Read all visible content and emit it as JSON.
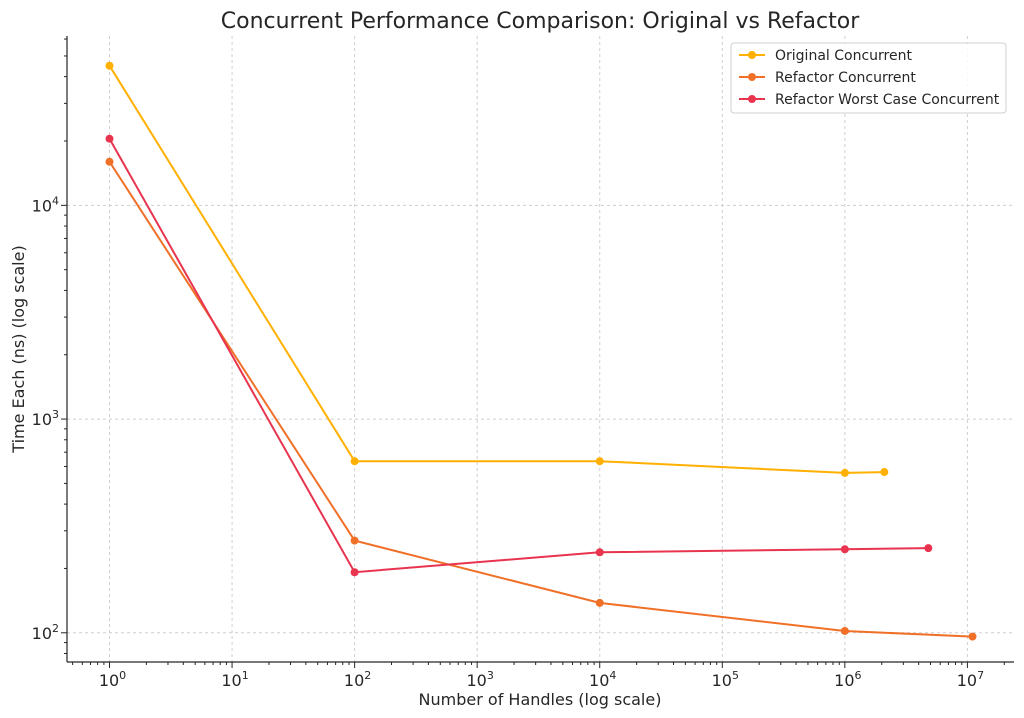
{
  "chart_data": {
    "type": "line",
    "title": "Concurrent Performance Comparison: Original vs Refactor",
    "xlabel": "Number of Handles (log scale)",
    "ylabel": "Time Each (ns) (log scale)",
    "xscale": "log",
    "yscale": "log",
    "xlim": [
      0.45,
      24000000
    ],
    "ylim": [
      73,
      62000
    ],
    "grid": true,
    "legend_position": "top-right",
    "x_ticks": [
      {
        "value": 1,
        "base": "10",
        "exp": "0"
      },
      {
        "value": 10,
        "base": "10",
        "exp": "1"
      },
      {
        "value": 100,
        "base": "10",
        "exp": "2"
      },
      {
        "value": 1000,
        "base": "10",
        "exp": "3"
      },
      {
        "value": 10000,
        "base": "10",
        "exp": "4"
      },
      {
        "value": 100000,
        "base": "10",
        "exp": "5"
      },
      {
        "value": 1000000,
        "base": "10",
        "exp": "6"
      },
      {
        "value": 10000000,
        "base": "10",
        "exp": "7"
      }
    ],
    "y_ticks": [
      {
        "value": 100,
        "base": "10",
        "exp": "2"
      },
      {
        "value": 1000,
        "base": "10",
        "exp": "3"
      },
      {
        "value": 10000,
        "base": "10",
        "exp": "4"
      }
    ],
    "series": [
      {
        "name": "Original Concurrent",
        "color": "#FFB000",
        "x": [
          1,
          100,
          10000,
          1000000,
          2100000
        ],
        "y": [
          45000,
          635,
          635,
          560,
          565
        ]
      },
      {
        "name": "Refactor Concurrent",
        "color": "#F07028",
        "x": [
          1,
          100,
          10000,
          1000000,
          11000000
        ],
        "y": [
          16000,
          270,
          138,
          102,
          96
        ]
      },
      {
        "name": "Refactor Worst Case Concurrent",
        "color": "#E8344E",
        "x": [
          1,
          100,
          10000,
          1000000,
          4800000
        ],
        "y": [
          20500,
          192,
          238,
          246,
          249
        ]
      }
    ]
  }
}
